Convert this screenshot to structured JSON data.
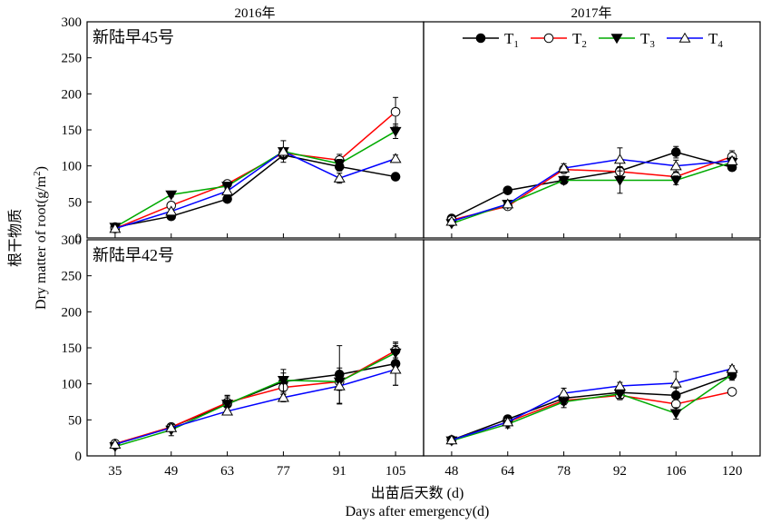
{
  "figure": {
    "year_labels": [
      "2016年",
      "2017年"
    ],
    "ylabel_cn": "根干物质",
    "ylabel_en": "Dry matter of root(g/m",
    "ylabel_sup": "2",
    "ylabel_close": ")",
    "xlabel_cn": "出苗后天数 (d)",
    "xlabel_en": "Days after emergency(d)"
  },
  "legend": {
    "placement": "top of top-right panel",
    "entries": [
      {
        "key": "T1",
        "base": "T",
        "sub": "1"
      },
      {
        "key": "T2",
        "base": "T",
        "sub": "2"
      },
      {
        "key": "T3",
        "base": "T",
        "sub": "3"
      },
      {
        "key": "T4",
        "base": "T",
        "sub": "4"
      }
    ]
  },
  "series_style": {
    "T1": {
      "color": "#000000",
      "marker": "filled-circle"
    },
    "T2": {
      "color": "#ff0000",
      "marker": "open-circle"
    },
    "T3": {
      "color": "#00aa00",
      "marker": "filled-triangle-down"
    },
    "T4": {
      "color": "#0000ff",
      "marker": "open-triangle-up"
    }
  },
  "chart_data": [
    {
      "type": "line",
      "title": "新陆早45号",
      "year": "2016年",
      "x": [
        35,
        49,
        63,
        77,
        91,
        105
      ],
      "ylim": [
        0,
        300
      ],
      "yticks": [
        0,
        50,
        100,
        150,
        200,
        250,
        300
      ],
      "series": [
        {
          "name": "T1",
          "values": [
            15,
            30,
            54,
            115,
            99,
            85
          ],
          "errors": [
            3,
            3,
            4,
            5,
            6,
            3
          ]
        },
        {
          "name": "T2",
          "values": [
            13,
            45,
            75,
            118,
            108,
            175
          ],
          "errors": [
            3,
            4,
            4,
            6,
            8,
            20
          ]
        },
        {
          "name": "T3",
          "values": [
            15,
            60,
            72,
            120,
            103,
            148
          ],
          "errors": [
            3,
            3,
            4,
            5,
            6,
            10
          ]
        },
        {
          "name": "T4",
          "values": [
            13,
            37,
            65,
            120,
            83,
            110
          ],
          "errors": [
            3,
            3,
            4,
            15,
            7,
            5
          ]
        }
      ]
    },
    {
      "type": "line",
      "title": "",
      "year": "2017年",
      "x": [
        48,
        64,
        78,
        92,
        106,
        120
      ],
      "ylim": [
        0,
        300
      ],
      "yticks": [
        0,
        50,
        100,
        150,
        200,
        250,
        300
      ],
      "series": [
        {
          "name": "T1",
          "values": [
            27,
            66,
            80,
            93,
            119,
            98
          ],
          "errors": [
            3,
            4,
            5,
            6,
            8,
            4
          ]
        },
        {
          "name": "T2",
          "values": [
            25,
            44,
            95,
            92,
            85,
            113
          ],
          "errors": [
            3,
            4,
            5,
            6,
            6,
            8
          ]
        },
        {
          "name": "T3",
          "values": [
            20,
            47,
            80,
            80,
            80,
            105
          ],
          "errors": [
            3,
            4,
            5,
            18,
            6,
            6
          ]
        },
        {
          "name": "T4",
          "values": [
            23,
            47,
            97,
            109,
            100,
            107
          ],
          "errors": [
            3,
            4,
            6,
            16,
            8,
            5
          ]
        }
      ]
    },
    {
      "type": "line",
      "title": "新陆早42号",
      "year": "2016年",
      "x": [
        35,
        49,
        63,
        77,
        91,
        105
      ],
      "ylim": [
        0,
        300
      ],
      "yticks": [
        0,
        50,
        100,
        150,
        200,
        250,
        300
      ],
      "xticks": [
        "35",
        "49",
        "63",
        "77",
        "91",
        "105"
      ],
      "series": [
        {
          "name": "T1",
          "values": [
            16,
            40,
            72,
            103,
            113,
            128
          ],
          "errors": [
            3,
            4,
            12,
            12,
            40,
            30
          ]
        },
        {
          "name": "T2",
          "values": [
            17,
            40,
            74,
            95,
            103,
            146
          ],
          "errors": [
            3,
            4,
            10,
            10,
            10,
            10
          ]
        },
        {
          "name": "T3",
          "values": [
            13,
            36,
            72,
            105,
            103,
            143
          ],
          "errors": [
            3,
            8,
            10,
            15,
            12,
            10
          ]
        },
        {
          "name": "T4",
          "values": [
            16,
            39,
            62,
            81,
            97,
            120
          ],
          "errors": [
            3,
            4,
            5,
            6,
            25,
            22
          ]
        }
      ]
    },
    {
      "type": "line",
      "title": "",
      "year": "2017年",
      "x": [
        48,
        64,
        78,
        92,
        106,
        120
      ],
      "ylim": [
        0,
        300
      ],
      "yticks": [
        0,
        50,
        100,
        150,
        200,
        250,
        300
      ],
      "xticks": [
        "48",
        "64",
        "78",
        "92",
        "106",
        "120"
      ],
      "series": [
        {
          "name": "T1",
          "values": [
            22,
            51,
            80,
            88,
            84,
            112
          ],
          "errors": [
            3,
            5,
            8,
            6,
            10,
            5
          ]
        },
        {
          "name": "T2",
          "values": [
            22,
            47,
            77,
            84,
            72,
            89
          ],
          "errors": [
            3,
            5,
            6,
            6,
            10,
            4
          ]
        },
        {
          "name": "T3",
          "values": [
            21,
            44,
            75,
            86,
            59,
            113
          ],
          "errors": [
            3,
            5,
            8,
            6,
            8,
            8
          ]
        },
        {
          "name": "T4",
          "values": [
            22,
            47,
            87,
            97,
            101,
            121
          ],
          "errors": [
            3,
            5,
            7,
            5,
            16,
            4
          ]
        }
      ]
    }
  ]
}
